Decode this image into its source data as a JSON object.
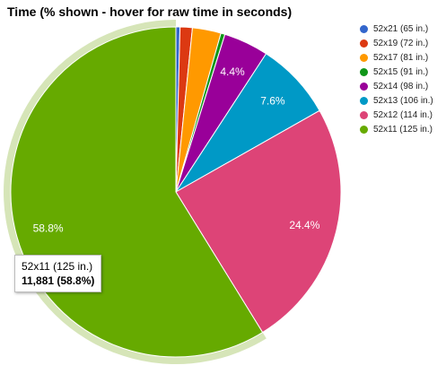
{
  "chart_data": {
    "type": "pie",
    "title": "Time (% shown - hover for raw time in seconds)",
    "categories": [
      "52x21 (65 in.)",
      "52x19 (72 in.)",
      "52x17 (81 in.)",
      "52x15 (91 in.)",
      "52x14 (98 in.)",
      "52x13 (106 in.)",
      "52x12 (114 in.)",
      "52x11 (125 in.)"
    ],
    "values": [
      0.4,
      1.2,
      2.8,
      0.4,
      4.4,
      7.6,
      24.4,
      58.8
    ],
    "colors": [
      "#3366cc",
      "#dc3912",
      "#ff9900",
      "#109618",
      "#990099",
      "#0099c6",
      "#dd4477",
      "#66aa00"
    ],
    "slice_labels": [
      "",
      "",
      "",
      "",
      "4.4%",
      "7.6%",
      "24.4%",
      "58.8%"
    ],
    "legend_position": "right",
    "highlighted_index": 7,
    "highlight_color": "#d6e5b8",
    "tooltip": {
      "name": "52x11 (125 in.)",
      "value": "11,881 (58.8%)"
    }
  }
}
